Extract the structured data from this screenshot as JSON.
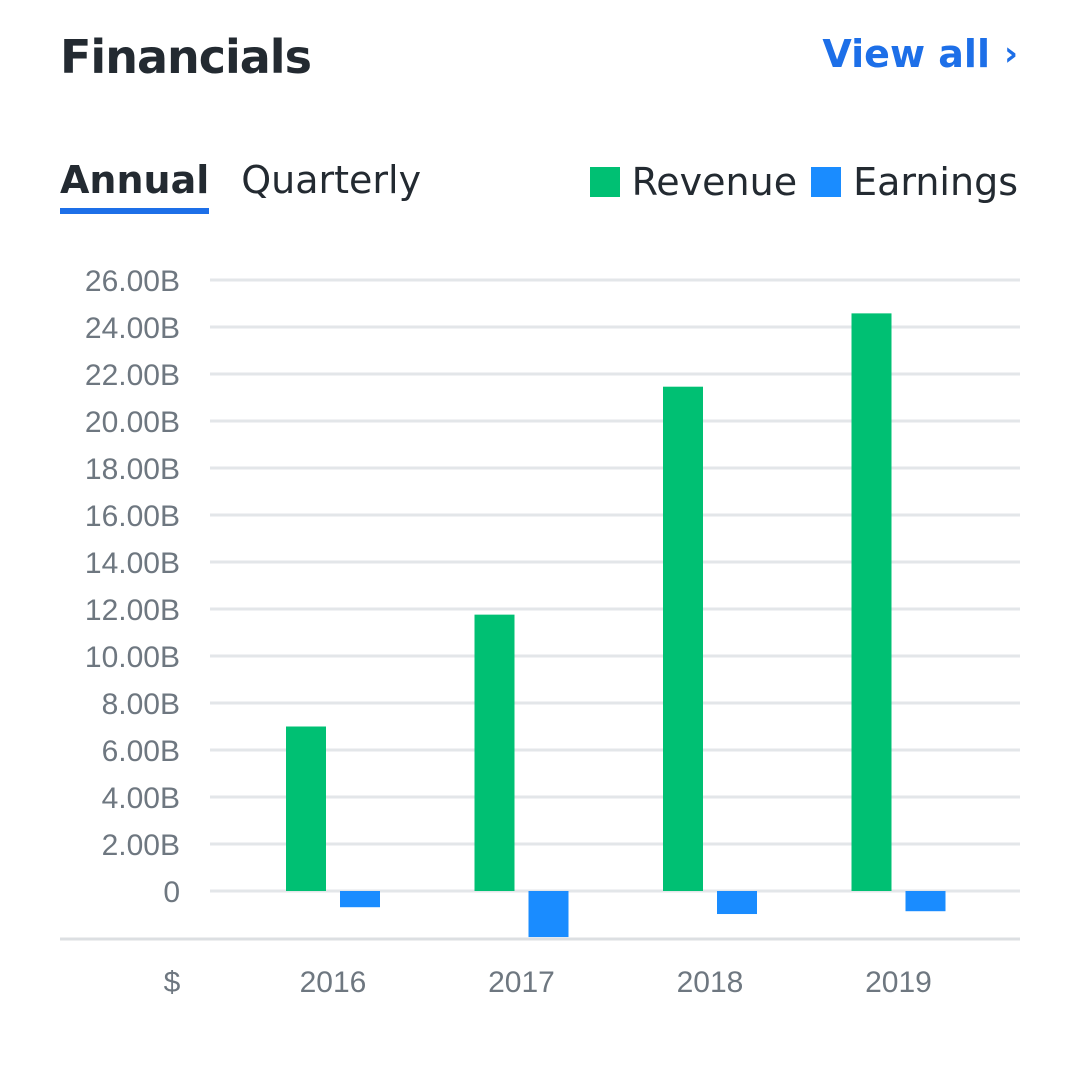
{
  "header": {
    "title": "Financials",
    "view_all_label": "View all",
    "view_all_chevron": "›"
  },
  "tabs": [
    {
      "label": "Annual",
      "active": true
    },
    {
      "label": "Quarterly",
      "active": false
    }
  ],
  "legend": [
    {
      "label": "Revenue",
      "color": "#00c073"
    },
    {
      "label": "Earnings",
      "color": "#1a8cff"
    }
  ],
  "colors": {
    "revenue": "#00c073",
    "earnings": "#1a8cff",
    "accent": "#1d6fe8",
    "grid": "#e3e6e9",
    "axis": "#dcdfe2"
  },
  "chart_data": {
    "type": "bar",
    "categories": [
      "2016",
      "2017",
      "2018",
      "2019"
    ],
    "series": [
      {
        "name": "Revenue",
        "values": [
          7.0,
          11.76,
          21.46,
          24.58
        ]
      },
      {
        "name": "Earnings",
        "values": [
          -0.69,
          -1.96,
          -0.98,
          -0.86
        ]
      }
    ],
    "y_ticks": [
      {
        "value": 26,
        "label": "26.00B"
      },
      {
        "value": 24,
        "label": "24.00B"
      },
      {
        "value": 22,
        "label": "22.00B"
      },
      {
        "value": 20,
        "label": "20.00B"
      },
      {
        "value": 18,
        "label": "18.00B"
      },
      {
        "value": 16,
        "label": "16.00B"
      },
      {
        "value": 14,
        "label": "14.00B"
      },
      {
        "value": 12,
        "label": "12.00B"
      },
      {
        "value": 10,
        "label": "10.00B"
      },
      {
        "value": 8,
        "label": "8.00B"
      },
      {
        "value": 6,
        "label": "6.00B"
      },
      {
        "value": 4,
        "label": "4.00B"
      },
      {
        "value": 2,
        "label": "2.00B"
      },
      {
        "value": 0,
        "label": "0"
      }
    ],
    "ylim": [
      -2,
      26
    ],
    "currency_label": "$",
    "grid": true,
    "legend_position": "top-right"
  }
}
